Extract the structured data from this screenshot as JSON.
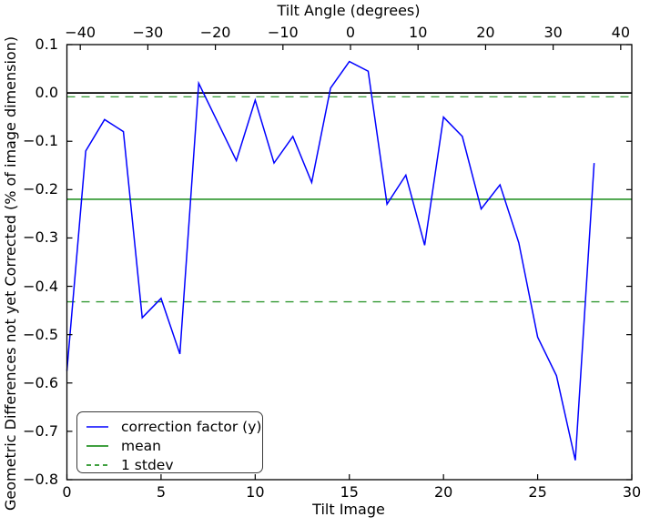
{
  "chart_data": {
    "type": "line",
    "title": "",
    "grid": false,
    "top_axis": {
      "label": "Tilt Angle (degrees)",
      "lim": [
        -41.98,
        41.64
      ],
      "tick_values": [
        -40,
        -30,
        -20,
        -10,
        0,
        10,
        20,
        30,
        40
      ],
      "tick_labels": [
        "−40",
        "−30",
        "−20",
        "−10",
        "0",
        "10",
        "20",
        "30",
        "40"
      ]
    },
    "bottom_axis": {
      "label": "Tilt Image",
      "lim": [
        0,
        30
      ],
      "tick_values": [
        0,
        5,
        10,
        15,
        20,
        25,
        30
      ],
      "tick_labels": [
        "0",
        "5",
        "10",
        "15",
        "20",
        "25",
        "30"
      ]
    },
    "left_axis": {
      "label": "Geometric Differences not yet Corrected (% of image dimension)",
      "lim": [
        -0.8,
        0.1
      ],
      "tick_values": [
        0.1,
        0.0,
        -0.1,
        -0.2,
        -0.3,
        -0.4,
        -0.5,
        -0.6,
        -0.7,
        -0.8
      ],
      "tick_labels": [
        "0.1",
        "0.0",
        "−0.1",
        "−0.2",
        "−0.3",
        "−0.4",
        "−0.5",
        "−0.6",
        "−0.7",
        "−0.8"
      ]
    },
    "zero_line": {
      "y": 0.0,
      "color": "#000000"
    },
    "series": [
      {
        "name": "correction factor (y)",
        "color": "#0000ff",
        "linestyle": "solid",
        "x": [
          0,
          1,
          2,
          3,
          4,
          5,
          6,
          7,
          8,
          9,
          10,
          11,
          12,
          13,
          14,
          15,
          16,
          17,
          18,
          19,
          20,
          21,
          22,
          23,
          24,
          25,
          26,
          27,
          28
        ],
        "y": [
          -0.575,
          -0.12,
          -0.055,
          -0.08,
          -0.465,
          -0.425,
          -0.54,
          0.02,
          -0.06,
          -0.14,
          -0.015,
          -0.145,
          -0.09,
          -0.185,
          0.01,
          0.065,
          0.045,
          -0.23,
          -0.17,
          -0.315,
          -0.05,
          -0.09,
          -0.24,
          -0.19,
          -0.31,
          -0.505,
          -0.585,
          -0.76,
          -0.145
        ]
      },
      {
        "name": "mean",
        "color": "#008000",
        "linestyle": "solid",
        "y": -0.22
      },
      {
        "name": "1 stdev",
        "color": "#008000",
        "linestyle": "dashed",
        "y_upper": -0.008,
        "y_lower": -0.432
      }
    ],
    "stats": {
      "mean": -0.22,
      "stdev": 0.212
    },
    "legend": {
      "position": "lower left",
      "entries": [
        {
          "label": "correction factor (y)",
          "color": "#0000ff",
          "linestyle": "solid"
        },
        {
          "label": "mean",
          "color": "#008000",
          "linestyle": "solid"
        },
        {
          "label": "1 stdev",
          "color": "#008000",
          "linestyle": "dashed"
        }
      ]
    }
  }
}
